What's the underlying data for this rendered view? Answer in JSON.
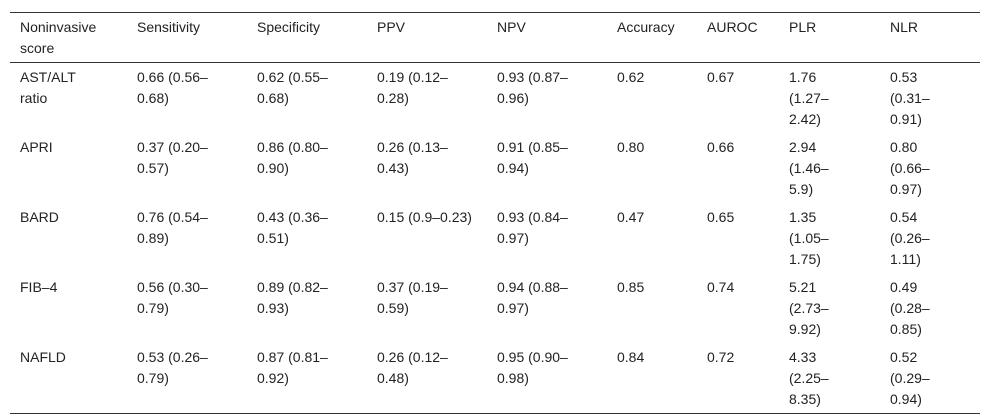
{
  "table": {
    "header": [
      "Noninvasive score",
      "Sensitivity",
      "Specificity",
      "PPV",
      "NPV",
      "Accuracy",
      "AUROC",
      "PLR",
      "NLR"
    ],
    "rows": [
      [
        "AST/ALT ratio",
        "0.66 (0.56–0.68)",
        "0.62 (0.55–0.68)",
        "0.19 (0.12–0.28)",
        "0.93 (0.87–0.96)",
        "0.62",
        "0.67",
        "1.76 (1.27–2.42)",
        "0.53 (0.31–0.91)"
      ],
      [
        "APRI",
        "0.37 (0.20–0.57)",
        "0.86 (0.80–0.90)",
        "0.26 (0.13–0.43)",
        "0.91 (0.85–0.94)",
        "0.80",
        "0.66",
        "2.94 (1.46–5.9)",
        "0.80 (0.66–0.97)"
      ],
      [
        "BARD",
        "0.76 (0.54–0.89)",
        "0.43 (0.36–0.51)",
        "0.15 (0.9–0.23)",
        "0.93 (0.84–0.97)",
        "0.47",
        "0.65",
        "1.35 (1.05–1.75)",
        "0.54 (0.26–1.11)"
      ],
      [
        "FIB–4",
        "0.56 (0.30–0.79)",
        "0.89 (0.82–0.93)",
        "0.37 (0.19–0.59)",
        "0.94 (0.88–0.97)",
        "0.85",
        "0.74",
        "5.21 (2.73–9.92)",
        "0.49 (0.28–0.85)"
      ],
      [
        "NAFLD",
        "0.53 (0.26–0.79)",
        "0.87 (0.81–0.92)",
        "0.26 (0.12–0.48)",
        "0.95 (0.90–0.98)",
        "0.84",
        "0.72",
        "4.33 (2.25–8.35)",
        "0.52 (0.29–0.94)"
      ]
    ]
  }
}
